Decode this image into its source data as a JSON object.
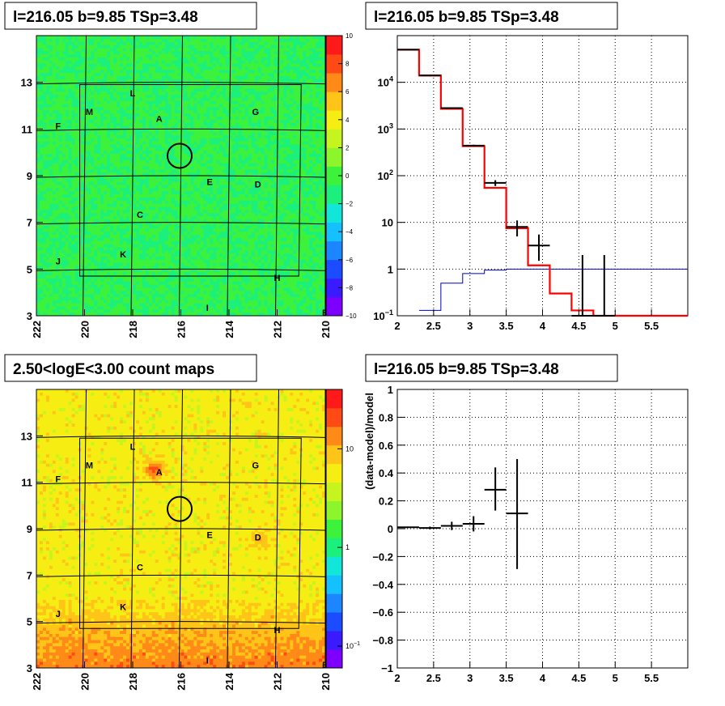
{
  "colors": {
    "palette": [
      "#7d00ff",
      "#3a1aff",
      "#1b4cff",
      "#1b86ff",
      "#15c0ff",
      "#12e6d8",
      "#1cf07c",
      "#3cf23a",
      "#8cf52b",
      "#c6f41e",
      "#f6ee13",
      "#ffc418",
      "#ff8a18",
      "#ff4a16",
      "#ff1a1a"
    ],
    "model_line": "#ff0000",
    "background_line": "#0000cc",
    "data": "#000000",
    "grid": "#000000"
  },
  "chart_data": [
    {
      "type": "heatmap",
      "title": "l=216.05 b=9.85 TSp=3.48",
      "x_axis": {
        "range": [
          222,
          210
        ],
        "ticks": [
          "222",
          "220",
          "218",
          "216",
          "214",
          "212",
          "210"
        ]
      },
      "y_axis": {
        "range": [
          3,
          15
        ],
        "ticks": [
          "3",
          "5",
          "7",
          "9",
          "11",
          "13"
        ]
      },
      "colorbar": {
        "range": [
          -10,
          10
        ],
        "ticks": [
          "10",
          "8",
          "6",
          "4",
          "2",
          "0",
          "−2",
          "−4",
          "−6",
          "−8",
          "−10"
        ]
      },
      "labels": [
        {
          "text": "L",
          "l": 218.0,
          "b": 12.4
        },
        {
          "text": "M",
          "l": 219.8,
          "b": 11.6
        },
        {
          "text": "A",
          "l": 216.9,
          "b": 11.3
        },
        {
          "text": "G",
          "l": 212.9,
          "b": 11.6
        },
        {
          "text": "F",
          "l": 221.1,
          "b": 11.0
        },
        {
          "text": "E",
          "l": 214.8,
          "b": 8.6
        },
        {
          "text": "D",
          "l": 212.8,
          "b": 8.5
        },
        {
          "text": "C",
          "l": 217.7,
          "b": 7.2
        },
        {
          "text": "K",
          "l": 218.4,
          "b": 5.5
        },
        {
          "text": "J",
          "l": 221.1,
          "b": 5.2
        },
        {
          "text": "H",
          "l": 212.0,
          "b": 4.5
        },
        {
          "text": "I",
          "l": 214.9,
          "b": 3.2
        },
        {
          "text": "B",
          "l": 210.0,
          "b": 3.0
        }
      ],
      "circle": {
        "l": 216.05,
        "b": 9.85
      }
    },
    {
      "type": "line",
      "title": "l=216.05 b=9.85 TSp=3.48",
      "x_axis": {
        "range": [
          2,
          6
        ],
        "log": false,
        "ticks": [
          "2",
          "2.5",
          "3",
          "3.5",
          "4",
          "4.5",
          "5",
          "5.5"
        ]
      },
      "y_axis": {
        "range": [
          0.1,
          100000
        ],
        "log": true,
        "ticks": [
          {
            "value": 10000,
            "main": "10",
            "exp": "4"
          },
          {
            "value": 1000,
            "main": "10",
            "exp": "3"
          },
          {
            "value": 100,
            "main": "10",
            "exp": "2"
          },
          {
            "value": 10,
            "main": "10",
            "exp": ""
          },
          {
            "value": 1,
            "main": "1",
            "exp": ""
          },
          {
            "value": 0.1,
            "main": "10",
            "exp": "−1"
          }
        ]
      },
      "grid": true,
      "model_steps": [
        {
          "x0": 2.0,
          "x1": 2.3,
          "y": 50000
        },
        {
          "x0": 2.3,
          "x1": 2.6,
          "y": 14000
        },
        {
          "x0": 2.6,
          "x1": 2.9,
          "y": 2700
        },
        {
          "x0": 2.9,
          "x1": 3.2,
          "y": 430
        },
        {
          "x0": 3.2,
          "x1": 3.5,
          "y": 55
        },
        {
          "x0": 3.5,
          "x1": 3.8,
          "y": 7.5
        },
        {
          "x0": 3.8,
          "x1": 4.1,
          "y": 1.2
        },
        {
          "x0": 4.1,
          "x1": 4.4,
          "y": 0.3
        },
        {
          "x0": 4.4,
          "x1": 4.7,
          "y": 0.13
        },
        {
          "x0": 4.7,
          "x1": 6.0,
          "y": 0.1
        }
      ],
      "background_steps": [
        {
          "x0": 2.3,
          "x1": 2.6,
          "y": 0.13
        },
        {
          "x0": 2.6,
          "x1": 2.9,
          "y": 0.5
        },
        {
          "x0": 2.9,
          "x1": 3.2,
          "y": 0.8
        },
        {
          "x0": 3.2,
          "x1": 3.5,
          "y": 0.95
        },
        {
          "x0": 3.5,
          "x1": 6.0,
          "y": 1.0
        }
      ],
      "data_points": [
        {
          "x": 2.15,
          "y": 50000,
          "lo": 50000,
          "hi": 50000,
          "xerr": 0.15
        },
        {
          "x": 2.45,
          "y": 14000,
          "lo": 14000,
          "hi": 14000,
          "xerr": 0.15
        },
        {
          "x": 2.75,
          "y": 2800,
          "lo": 2750,
          "hi": 2850,
          "xerr": 0.15
        },
        {
          "x": 3.05,
          "y": 440,
          "lo": 420,
          "hi": 460,
          "xerr": 0.15
        },
        {
          "x": 3.35,
          "y": 70,
          "lo": 60,
          "hi": 80,
          "xerr": 0.15
        },
        {
          "x": 3.65,
          "y": 8,
          "lo": 5,
          "hi": 11,
          "xerr": 0.15
        },
        {
          "x": 3.95,
          "y": 3.2,
          "lo": 1.5,
          "hi": 5.5,
          "xerr": 0.15
        },
        {
          "x": 4.55,
          "y": 0.1,
          "lo": 0.1,
          "hi": 2,
          "xerr": 0.15
        },
        {
          "x": 4.85,
          "y": 0.1,
          "lo": 0.1,
          "hi": 2,
          "xerr": 0.15
        }
      ]
    },
    {
      "type": "heatmap",
      "title": "2.50<logE<3.00 count maps",
      "x_axis": {
        "range": [
          222,
          210
        ],
        "ticks": [
          "222",
          "220",
          "218",
          "216",
          "214",
          "212",
          "210"
        ]
      },
      "y_axis": {
        "range": [
          3,
          15
        ],
        "ticks": [
          "3",
          "5",
          "7",
          "9",
          "11",
          "13"
        ]
      },
      "colorbar": {
        "range": [
          0.06,
          40
        ],
        "log": true,
        "ticks": [
          {
            "value": 10,
            "main": "10",
            "exp": ""
          },
          {
            "value": 1,
            "main": "1",
            "exp": ""
          },
          {
            "value": 0.1,
            "main": "10",
            "exp": "−1"
          }
        ]
      },
      "labels": [
        {
          "text": "L",
          "l": 218.0,
          "b": 12.4
        },
        {
          "text": "M",
          "l": 219.8,
          "b": 11.6
        },
        {
          "text": "A",
          "l": 216.9,
          "b": 11.3
        },
        {
          "text": "G",
          "l": 212.9,
          "b": 11.6
        },
        {
          "text": "F",
          "l": 221.1,
          "b": 11.0
        },
        {
          "text": "E",
          "l": 214.8,
          "b": 8.6
        },
        {
          "text": "D",
          "l": 212.8,
          "b": 8.5
        },
        {
          "text": "C",
          "l": 217.7,
          "b": 7.2
        },
        {
          "text": "K",
          "l": 218.4,
          "b": 5.5
        },
        {
          "text": "J",
          "l": 221.1,
          "b": 5.2
        },
        {
          "text": "H",
          "l": 212.0,
          "b": 4.5
        },
        {
          "text": "I",
          "l": 214.9,
          "b": 3.2
        },
        {
          "text": "B",
          "l": 210.0,
          "b": 3.0
        }
      ],
      "circle": {
        "l": 216.05,
        "b": 9.85
      }
    },
    {
      "type": "scatter",
      "title": "l=216.05 b=9.85 TSp=3.48",
      "xlabel": "",
      "ylabel": "(data-model)/model",
      "x_axis": {
        "range": [
          2,
          6
        ],
        "ticks": [
          "2",
          "2.5",
          "3",
          "3.5",
          "4",
          "4.5",
          "5",
          "5.5"
        ]
      },
      "y_axis": {
        "range": [
          -1,
          1
        ],
        "ticks": [
          "1",
          "0.8",
          "0.6",
          "0.4",
          "0.2",
          "0",
          "−0.2",
          "−0.4",
          "−0.6",
          "−0.8",
          "−1"
        ]
      },
      "grid": true,
      "data_points": [
        {
          "x": 2.15,
          "y": 0.01,
          "lo": 0.005,
          "hi": 0.015,
          "xerr": 0.15
        },
        {
          "x": 2.45,
          "y": 0.005,
          "lo": -0.005,
          "hi": 0.015,
          "xerr": 0.15
        },
        {
          "x": 2.75,
          "y": 0.02,
          "lo": -0.01,
          "hi": 0.05,
          "xerr": 0.15
        },
        {
          "x": 3.05,
          "y": 0.035,
          "lo": -0.02,
          "hi": 0.09,
          "xerr": 0.15
        },
        {
          "x": 3.35,
          "y": 0.28,
          "lo": 0.13,
          "hi": 0.44,
          "xerr": 0.15
        },
        {
          "x": 3.65,
          "y": 0.11,
          "lo": -0.29,
          "hi": 0.5,
          "xerr": 0.15
        }
      ]
    }
  ]
}
